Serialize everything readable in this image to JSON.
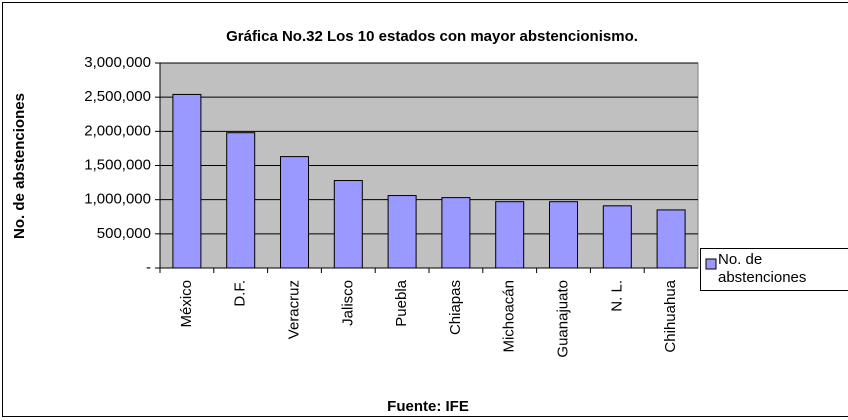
{
  "chart_data": {
    "type": "bar",
    "title": "Gráfica No.32 Los 10 estados con mayor abstencionismo.",
    "x_label": "Fuente: IFE",
    "y_label": "No. de abstenciones",
    "categories": [
      "México",
      "D.F.",
      "Veracruz",
      "Jalisco",
      "Puebla",
      "Chiapas",
      "Michoacán",
      "Guanajuato",
      "N. L.",
      "Chihuahua"
    ],
    "series": [
      {
        "name": "No. de abstenciones",
        "color": "#9999ff",
        "values": [
          2540000,
          1980000,
          1630000,
          1280000,
          1060000,
          1030000,
          970000,
          970000,
          910000,
          850000
        ]
      }
    ],
    "ylim": [
      0,
      3000000
    ],
    "yticks": [
      {
        "value": 0,
        "label": "-"
      },
      {
        "value": 500000,
        "label": "500,000"
      },
      {
        "value": 1000000,
        "label": "1,000,000"
      },
      {
        "value": 1500000,
        "label": "1,500,000"
      },
      {
        "value": 2000000,
        "label": "2,000,000"
      },
      {
        "value": 2500000,
        "label": "2,500,000"
      },
      {
        "value": 3000000,
        "label": "3,000,000"
      }
    ],
    "grid": true,
    "plot_background": "#c0c0c0",
    "legend": "right"
  }
}
